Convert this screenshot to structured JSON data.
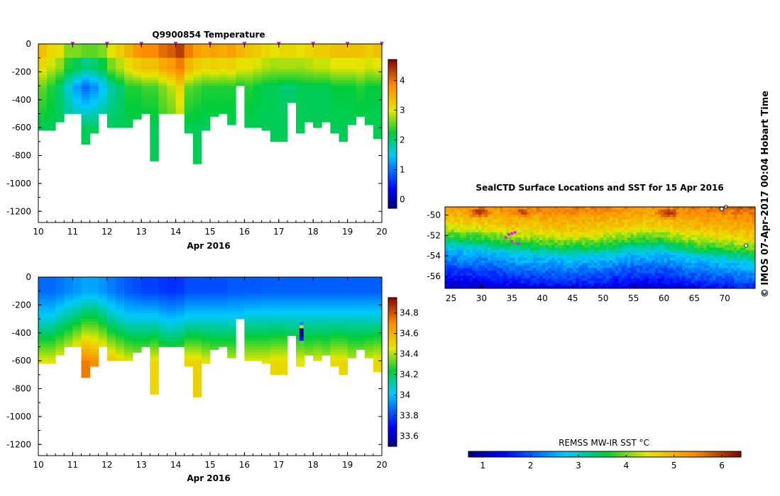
{
  "side_text": "© IMOS 07-Apr-2017 00:04 Hobart Time",
  "chart_data": [
    {
      "id": "temperature",
      "type": "heatmap",
      "title": "Q9900854  Temperature",
      "xlabel": "Apr 2016",
      "x_ticks": [
        "10",
        "11",
        "12",
        "13",
        "14",
        "15",
        "16",
        "17",
        "18",
        "19",
        "20"
      ],
      "y_ticks": [
        "0",
        "-200",
        "-400",
        "-600",
        "-800",
        "-1000",
        "-1200"
      ],
      "xlim": [
        10,
        20
      ],
      "ylim": [
        -1280,
        0
      ],
      "colorbar_ticks": [
        "0",
        "1",
        "2",
        "3",
        "4"
      ],
      "colorbar_range": [
        -0.3,
        4.7
      ],
      "profile_markers": [
        11,
        12,
        13,
        14,
        15,
        16,
        17,
        18,
        19,
        20
      ],
      "profiles": [
        {
          "t": 10.0,
          "w": 0.25,
          "max_depth": 610,
          "surface": 3.3,
          "mid": 2.5,
          "deep": 2.1
        },
        {
          "t": 10.25,
          "w": 0.25,
          "max_depth": 610,
          "surface": 3.1,
          "mid": 2.3,
          "deep": 2.1
        },
        {
          "t": 10.5,
          "w": 0.25,
          "max_depth": 560,
          "surface": 3.0,
          "mid": 2.0,
          "deep": 2.1
        },
        {
          "t": 10.75,
          "w": 0.25,
          "max_depth": 500,
          "surface": 2.6,
          "mid": 1.6,
          "deep": 2.0
        },
        {
          "t": 11.0,
          "w": 0.25,
          "max_depth": 490,
          "surface": 2.6,
          "mid": 1.2,
          "deep": 2.0
        },
        {
          "t": 11.25,
          "w": 0.25,
          "max_depth": 710,
          "surface": 2.5,
          "mid": 0.9,
          "deep": 2.1
        },
        {
          "t": 11.5,
          "w": 0.25,
          "max_depth": 640,
          "surface": 2.5,
          "mid": 1.1,
          "deep": 2.1
        },
        {
          "t": 11.75,
          "w": 0.25,
          "max_depth": 500,
          "surface": 2.6,
          "mid": 1.4,
          "deep": 2.1
        },
        {
          "t": 12.0,
          "w": 0.25,
          "max_depth": 590,
          "surface": 3.0,
          "mid": 1.8,
          "deep": 2.1
        },
        {
          "t": 12.25,
          "w": 0.25,
          "max_depth": 590,
          "surface": 3.2,
          "mid": 2.0,
          "deep": 2.1
        },
        {
          "t": 12.5,
          "w": 0.25,
          "max_depth": 600,
          "surface": 3.4,
          "mid": 2.3,
          "deep": 2.1
        },
        {
          "t": 12.75,
          "w": 0.25,
          "max_depth": 540,
          "surface": 3.7,
          "mid": 2.3,
          "deep": 2.1
        },
        {
          "t": 13.0,
          "w": 0.25,
          "max_depth": 490,
          "surface": 3.8,
          "mid": 2.4,
          "deep": 2.1
        },
        {
          "t": 13.25,
          "w": 0.25,
          "max_depth": 840,
          "surface": 3.8,
          "mid": 2.4,
          "deep": 2.1
        },
        {
          "t": 13.5,
          "w": 0.25,
          "max_depth": 500,
          "surface": 4.0,
          "mid": 2.6,
          "deep": 2.3
        },
        {
          "t": 13.75,
          "w": 0.25,
          "max_depth": 500,
          "surface": 4.1,
          "mid": 2.8,
          "deep": 2.4
        },
        {
          "t": 14.0,
          "w": 0.25,
          "max_depth": 490,
          "surface": 4.3,
          "mid": 3.1,
          "deep": 2.7
        },
        {
          "t": 14.25,
          "w": 0.25,
          "max_depth": 640,
          "surface": 3.9,
          "mid": 2.5,
          "deep": 2.1
        },
        {
          "t": 14.5,
          "w": 0.25,
          "max_depth": 860,
          "surface": 3.6,
          "mid": 2.4,
          "deep": 2.1
        },
        {
          "t": 14.75,
          "w": 0.25,
          "max_depth": 610,
          "surface": 3.5,
          "mid": 2.3,
          "deep": 2.1
        },
        {
          "t": 15.0,
          "w": 0.25,
          "max_depth": 510,
          "surface": 3.6,
          "mid": 2.3,
          "deep": 2.1
        },
        {
          "t": 15.25,
          "w": 0.25,
          "max_depth": 500,
          "surface": 3.5,
          "mid": 2.3,
          "deep": 2.1
        },
        {
          "t": 15.5,
          "w": 0.25,
          "max_depth": 570,
          "surface": 3.6,
          "mid": 2.3,
          "deep": 2.1
        },
        {
          "t": 15.75,
          "w": 0.25,
          "max_depth": 300,
          "surface": 3.4,
          "mid": 2.2,
          "deep": 2.1
        },
        {
          "t": 16.0,
          "w": 0.25,
          "max_depth": 600,
          "surface": 3.3,
          "mid": 2.3,
          "deep": 2.1
        },
        {
          "t": 16.25,
          "w": 0.25,
          "max_depth": 600,
          "surface": 3.2,
          "mid": 2.2,
          "deep": 2.1
        },
        {
          "t": 16.5,
          "w": 0.25,
          "max_depth": 620,
          "surface": 3.1,
          "mid": 2.1,
          "deep": 2.1
        },
        {
          "t": 16.75,
          "w": 0.25,
          "max_depth": 700,
          "surface": 3.0,
          "mid": 2.1,
          "deep": 2.1
        },
        {
          "t": 17.0,
          "w": 0.25,
          "max_depth": 700,
          "surface": 3.1,
          "mid": 2.0,
          "deep": 2.1
        },
        {
          "t": 17.25,
          "w": 0.25,
          "max_depth": 410,
          "surface": 3.1,
          "mid": 2.0,
          "deep": 2.1
        },
        {
          "t": 17.5,
          "w": 0.25,
          "max_depth": 630,
          "surface": 3.0,
          "mid": 2.1,
          "deep": 2.1
        },
        {
          "t": 17.75,
          "w": 0.25,
          "max_depth": 550,
          "surface": 3.1,
          "mid": 2.1,
          "deep": 2.1
        },
        {
          "t": 18.0,
          "w": 0.25,
          "max_depth": 590,
          "surface": 3.2,
          "mid": 2.1,
          "deep": 2.1
        },
        {
          "t": 18.25,
          "w": 0.25,
          "max_depth": 550,
          "surface": 3.2,
          "mid": 2.1,
          "deep": 2.1
        },
        {
          "t": 18.5,
          "w": 0.25,
          "max_depth": 640,
          "surface": 3.3,
          "mid": 2.2,
          "deep": 2.1
        },
        {
          "t": 18.75,
          "w": 0.25,
          "max_depth": 690,
          "surface": 3.3,
          "mid": 2.2,
          "deep": 2.1
        },
        {
          "t": 19.0,
          "w": 0.25,
          "max_depth": 570,
          "surface": 3.3,
          "mid": 2.2,
          "deep": 2.1
        },
        {
          "t": 19.25,
          "w": 0.25,
          "max_depth": 520,
          "surface": 3.3,
          "mid": 2.3,
          "deep": 2.1
        },
        {
          "t": 19.5,
          "w": 0.25,
          "max_depth": 570,
          "surface": 3.2,
          "mid": 2.2,
          "deep": 2.1
        },
        {
          "t": 19.75,
          "w": 0.25,
          "max_depth": 680,
          "surface": 3.3,
          "mid": 2.2,
          "deep": 2.1
        }
      ]
    },
    {
      "id": "salinity",
      "type": "heatmap",
      "title": "",
      "xlabel": "Apr 2016",
      "x_ticks": [
        "10",
        "11",
        "12",
        "13",
        "14",
        "15",
        "16",
        "17",
        "18",
        "19",
        "20"
      ],
      "y_ticks": [
        "0",
        "-200",
        "-400",
        "-600",
        "-800",
        "-1000",
        "-1200"
      ],
      "xlim": [
        10,
        20
      ],
      "ylim": [
        -1280,
        0
      ],
      "colorbar_ticks": [
        "33.6",
        "33.8",
        "34",
        "34.2",
        "34.4",
        "34.6",
        "34.8"
      ],
      "colorbar_range": [
        33.5,
        34.95
      ],
      "profiles": [
        {
          "t": 10.0,
          "w": 0.25,
          "max_depth": 610,
          "surface": 33.85,
          "mid": 34.05,
          "deep": 34.45
        },
        {
          "t": 10.25,
          "w": 0.25,
          "max_depth": 610,
          "surface": 33.85,
          "mid": 34.05,
          "deep": 34.45
        },
        {
          "t": 10.5,
          "w": 0.25,
          "max_depth": 560,
          "surface": 33.87,
          "mid": 34.1,
          "deep": 34.5
        },
        {
          "t": 10.75,
          "w": 0.25,
          "max_depth": 500,
          "surface": 33.9,
          "mid": 34.15,
          "deep": 34.55
        },
        {
          "t": 11.0,
          "w": 0.25,
          "max_depth": 490,
          "surface": 33.92,
          "mid": 34.2,
          "deep": 34.62
        },
        {
          "t": 11.25,
          "w": 0.25,
          "max_depth": 710,
          "surface": 33.95,
          "mid": 34.25,
          "deep": 34.72
        },
        {
          "t": 11.5,
          "w": 0.25,
          "max_depth": 640,
          "surface": 33.95,
          "mid": 34.25,
          "deep": 34.68
        },
        {
          "t": 11.75,
          "w": 0.25,
          "max_depth": 500,
          "surface": 33.92,
          "mid": 34.2,
          "deep": 34.62
        },
        {
          "t": 12.0,
          "w": 0.25,
          "max_depth": 590,
          "surface": 33.88,
          "mid": 34.12,
          "deep": 34.55
        },
        {
          "t": 12.25,
          "w": 0.25,
          "max_depth": 590,
          "surface": 33.85,
          "mid": 34.08,
          "deep": 34.5
        },
        {
          "t": 12.5,
          "w": 0.25,
          "max_depth": 600,
          "surface": 33.82,
          "mid": 34.05,
          "deep": 34.45
        },
        {
          "t": 12.75,
          "w": 0.25,
          "max_depth": 540,
          "surface": 33.8,
          "mid": 34.05,
          "deep": 34.42
        },
        {
          "t": 13.0,
          "w": 0.25,
          "max_depth": 490,
          "surface": 33.78,
          "mid": 34.05,
          "deep": 34.42
        },
        {
          "t": 13.25,
          "w": 0.25,
          "max_depth": 840,
          "surface": 33.78,
          "mid": 34.05,
          "deep": 34.48
        },
        {
          "t": 13.5,
          "w": 0.25,
          "max_depth": 500,
          "surface": 33.76,
          "mid": 34.02,
          "deep": 34.4
        },
        {
          "t": 13.75,
          "w": 0.25,
          "max_depth": 500,
          "surface": 33.75,
          "mid": 34.0,
          "deep": 34.38
        },
        {
          "t": 14.0,
          "w": 0.25,
          "max_depth": 490,
          "surface": 33.76,
          "mid": 34.02,
          "deep": 34.4
        },
        {
          "t": 14.25,
          "w": 0.25,
          "max_depth": 640,
          "surface": 33.8,
          "mid": 34.05,
          "deep": 34.5
        },
        {
          "t": 14.5,
          "w": 0.25,
          "max_depth": 860,
          "surface": 33.8,
          "mid": 34.05,
          "deep": 34.5
        },
        {
          "t": 14.75,
          "w": 0.25,
          "max_depth": 610,
          "surface": 33.8,
          "mid": 34.05,
          "deep": 34.45
        },
        {
          "t": 15.0,
          "w": 0.25,
          "max_depth": 510,
          "surface": 33.8,
          "mid": 34.05,
          "deep": 34.42
        },
        {
          "t": 15.25,
          "w": 0.25,
          "max_depth": 500,
          "surface": 33.8,
          "mid": 34.05,
          "deep": 34.42
        },
        {
          "t": 15.5,
          "w": 0.25,
          "max_depth": 570,
          "surface": 33.82,
          "mid": 34.05,
          "deep": 34.42
        },
        {
          "t": 15.75,
          "w": 0.25,
          "max_depth": 300,
          "surface": 33.82,
          "mid": 34.05,
          "deep": 34.4
        },
        {
          "t": 16.0,
          "w": 0.25,
          "max_depth": 600,
          "surface": 33.82,
          "mid": 34.08,
          "deep": 34.45
        },
        {
          "t": 16.25,
          "w": 0.25,
          "max_depth": 600,
          "surface": 33.82,
          "mid": 34.08,
          "deep": 34.45
        },
        {
          "t": 16.5,
          "w": 0.25,
          "max_depth": 620,
          "surface": 33.83,
          "mid": 34.08,
          "deep": 34.45
        },
        {
          "t": 16.75,
          "w": 0.25,
          "max_depth": 700,
          "surface": 33.83,
          "mid": 34.08,
          "deep": 34.48
        },
        {
          "t": 17.0,
          "w": 0.25,
          "max_depth": 700,
          "surface": 33.83,
          "mid": 34.08,
          "deep": 34.48
        },
        {
          "t": 17.25,
          "w": 0.25,
          "max_depth": 410,
          "surface": 33.83,
          "mid": 34.08,
          "deep": 34.4
        },
        {
          "t": 17.5,
          "w": 0.25,
          "max_depth": 630,
          "surface": 33.83,
          "mid": 34.08,
          "deep": 34.45
        },
        {
          "t": 17.75,
          "w": 0.25,
          "max_depth": 550,
          "surface": 33.83,
          "mid": 34.08,
          "deep": 34.42
        },
        {
          "t": 18.0,
          "w": 0.25,
          "max_depth": 590,
          "surface": 33.83,
          "mid": 34.08,
          "deep": 34.45
        },
        {
          "t": 18.25,
          "w": 0.25,
          "max_depth": 550,
          "surface": 33.83,
          "mid": 34.08,
          "deep": 34.42
        },
        {
          "t": 18.5,
          "w": 0.25,
          "max_depth": 640,
          "surface": 33.83,
          "mid": 34.08,
          "deep": 34.48
        },
        {
          "t": 18.75,
          "w": 0.25,
          "max_depth": 690,
          "surface": 33.83,
          "mid": 34.08,
          "deep": 34.48
        },
        {
          "t": 19.0,
          "w": 0.25,
          "max_depth": 570,
          "surface": 33.83,
          "mid": 34.08,
          "deep": 34.42
        },
        {
          "t": 19.25,
          "w": 0.25,
          "max_depth": 520,
          "surface": 33.83,
          "mid": 34.08,
          "deep": 34.42
        },
        {
          "t": 19.5,
          "w": 0.25,
          "max_depth": 570,
          "surface": 33.83,
          "mid": 34.08,
          "deep": 34.45
        },
        {
          "t": 19.75,
          "w": 0.25,
          "max_depth": 680,
          "surface": 33.83,
          "mid": 34.08,
          "deep": 34.48
        }
      ],
      "anomaly": {
        "t": 17.6,
        "w": 0.12,
        "depth_top": 320,
        "depth_bottom": 480
      }
    },
    {
      "id": "sst-map",
      "type": "heatmap",
      "title": "SealCTD Surface Locations and SST for 15 Apr 2016",
      "x_ticks": [
        "25",
        "30",
        "35",
        "40",
        "45",
        "50",
        "55",
        "60",
        "65",
        "70"
      ],
      "y_ticks": [
        "-50",
        "-52",
        "-54",
        "-56"
      ],
      "xlim": [
        24,
        75
      ],
      "ylim": [
        -57.2,
        -49.2
      ],
      "colorbar_title": "REMSS MW-IR SST °C",
      "colorbar_ticks": [
        "1",
        "2",
        "3",
        "4",
        "5",
        "6"
      ],
      "colorbar_range": [
        0.7,
        6.4
      ],
      "front_latitudes_by_lon": [
        {
          "lon": 24,
          "front": -51.8
        },
        {
          "lon": 30,
          "front": -52.0
        },
        {
          "lon": 35,
          "front": -52.4
        },
        {
          "lon": 40,
          "front": -52.6
        },
        {
          "lon": 45,
          "front": -52.8
        },
        {
          "lon": 50,
          "front": -52.6
        },
        {
          "lon": 55,
          "front": -52.2
        },
        {
          "lon": 60,
          "front": -52.2
        },
        {
          "lon": 65,
          "front": -52.8
        },
        {
          "lon": 70,
          "front": -53.0
        },
        {
          "lon": 75,
          "front": -53.4
        }
      ],
      "hot_spots": [
        {
          "lon": 29.5,
          "lat": -49.7,
          "sst": 6.2
        },
        {
          "lon": 36.5,
          "lat": -49.7,
          "sst": 6.0
        },
        {
          "lon": 60.5,
          "lat": -49.8,
          "sst": 6.2
        }
      ],
      "seal_tracks": [
        {
          "lon": 34.5,
          "lat": -51.9
        },
        {
          "lon": 35.0,
          "lat": -51.8
        },
        {
          "lon": 35.5,
          "lat": -51.7
        },
        {
          "lon": 34.0,
          "lat": -52.2
        },
        {
          "lon": 35.0,
          "lat": -52.6
        },
        {
          "lon": 36.0,
          "lat": -52.8
        }
      ],
      "islands": [
        {
          "lon": 69.5,
          "lat": -49.4
        },
        {
          "lon": 70.2,
          "lat": -49.2
        },
        {
          "lon": 73.5,
          "lat": -53.0
        }
      ]
    }
  ]
}
